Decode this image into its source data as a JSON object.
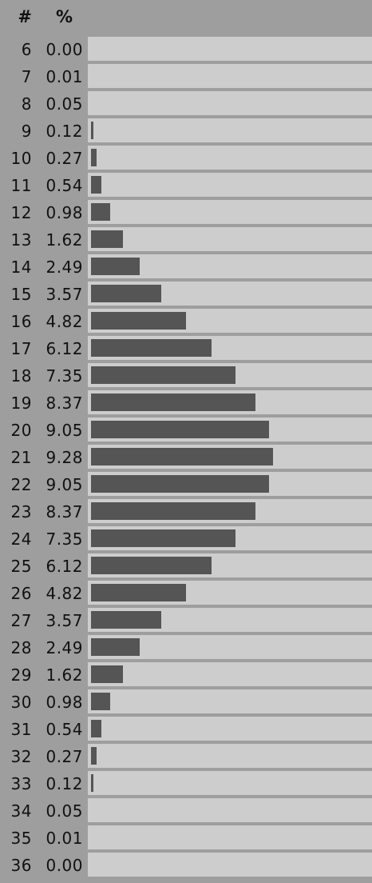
{
  "header": {
    "num_label": "#",
    "pct_label": "%"
  },
  "colors": {
    "background": "#9e9e9e",
    "track": "#cdcdcd",
    "bar": "#555555"
  },
  "chart_data": {
    "type": "bar",
    "orientation": "horizontal",
    "categories": [
      "6",
      "7",
      "8",
      "9",
      "10",
      "11",
      "12",
      "13",
      "14",
      "15",
      "16",
      "17",
      "18",
      "19",
      "20",
      "21",
      "22",
      "23",
      "24",
      "25",
      "26",
      "27",
      "28",
      "29",
      "30",
      "31",
      "32",
      "33",
      "34",
      "35",
      "36"
    ],
    "value_labels": [
      "0.00",
      "0.01",
      "0.05",
      "0.12",
      "0.27",
      "0.54",
      "0.98",
      "1.62",
      "2.49",
      "3.57",
      "4.82",
      "6.12",
      "7.35",
      "8.37",
      "9.05",
      "9.28",
      "9.05",
      "8.37",
      "7.35",
      "6.12",
      "4.82",
      "3.57",
      "2.49",
      "1.62",
      "0.98",
      "0.54",
      "0.27",
      "0.12",
      "0.05",
      "0.01",
      "0.00"
    ],
    "values": [
      0.0,
      0.01,
      0.05,
      0.12,
      0.27,
      0.54,
      0.98,
      1.62,
      2.49,
      3.57,
      4.82,
      6.12,
      7.35,
      8.37,
      9.05,
      9.28,
      9.05,
      8.37,
      7.35,
      6.12,
      4.82,
      3.57,
      2.49,
      1.62,
      0.98,
      0.54,
      0.27,
      0.12,
      0.05,
      0.01,
      0.0
    ],
    "xlim": [
      0,
      14.3
    ],
    "grid": false
  }
}
